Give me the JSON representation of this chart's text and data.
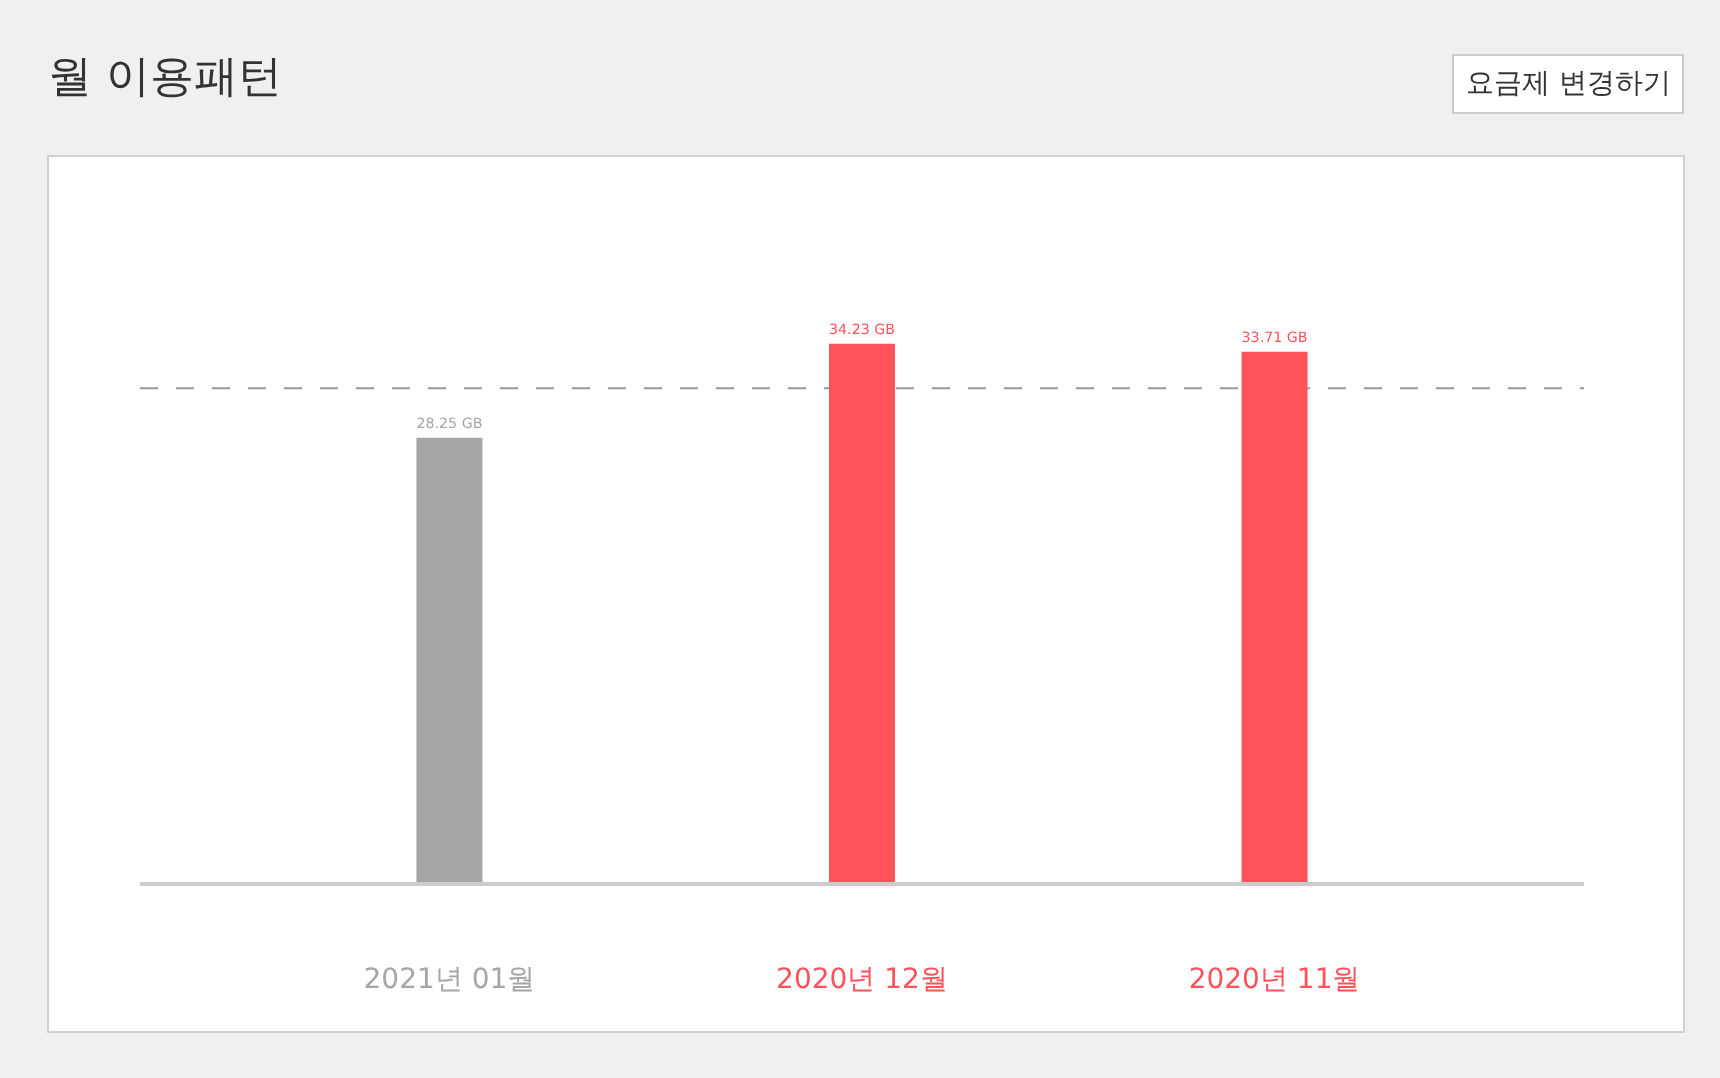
{
  "chart_data": {
    "type": "bar",
    "title": "월 이용패턴",
    "annotations": [
      "요금제 변경하기"
    ],
    "categories": [
      "2021년 01월",
      "2020년 12월",
      "2020년 11월"
    ],
    "values": [
      28.25,
      34.23,
      33.71
    ],
    "value_labels": [
      "28.25 GB",
      "34.23 GB",
      "33.71 GB"
    ],
    "colors": [
      "#a6a6a6",
      "#ff525a",
      "#ff525a"
    ],
    "ref_lines": [
      {
        "axis": "y",
        "value": 31.4,
        "color": "#999999",
        "line_style": "dashed"
      }
    ],
    "legend": false
  }
}
